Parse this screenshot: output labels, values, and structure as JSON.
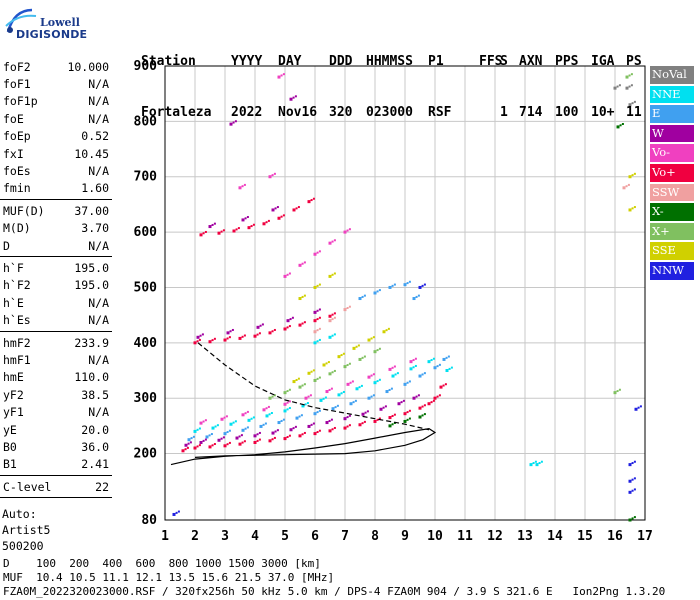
{
  "logo": {
    "line1": "Lowell",
    "line2": "DIGISONDE"
  },
  "header": {
    "row1": [
      "Station",
      "YYYY",
      "DAY",
      "DDD",
      "HHMMSS",
      "P1",
      "FFS",
      "S",
      "AXN",
      "PPS",
      "IGA",
      "PS"
    ],
    "row2": [
      "Fortaleza",
      "2022",
      "Nov16",
      "320",
      "023000",
      "RSF",
      "",
      "1",
      "714",
      "100",
      "10+",
      "11"
    ]
  },
  "params": {
    "group1": [
      {
        "label": "foF2",
        "value": "10.000"
      },
      {
        "label": "foF1",
        "value": "N/A"
      },
      {
        "label": "foF1p",
        "value": "N/A"
      },
      {
        "label": "foE",
        "value": "N/A"
      },
      {
        "label": "foEp",
        "value": "0.52"
      },
      {
        "label": "fxI",
        "value": "10.45"
      },
      {
        "label": "foEs",
        "value": "N/A"
      },
      {
        "label": "fmin",
        "value": "1.60"
      }
    ],
    "group2": [
      {
        "label": "MUF(D)",
        "value": "37.00"
      },
      {
        "label": "M(D)",
        "value": "3.70"
      },
      {
        "label": "D",
        "value": "N/A"
      }
    ],
    "group3": [
      {
        "label": "h`F",
        "value": "195.0"
      },
      {
        "label": "h`F2",
        "value": "195.0"
      },
      {
        "label": "h`E",
        "value": "N/A"
      },
      {
        "label": "h`Es",
        "value": "N/A"
      }
    ],
    "group4": [
      {
        "label": "hmF2",
        "value": "233.9"
      },
      {
        "label": "hmF1",
        "value": "N/A"
      },
      {
        "label": "hmE",
        "value": "110.0"
      },
      {
        "label": "yF2",
        "value": "38.5"
      },
      {
        "label": "yF1",
        "value": "N/A"
      },
      {
        "label": "yE",
        "value": "20.0"
      },
      {
        "label": "B0",
        "value": "36.0"
      },
      {
        "label": "B1",
        "value": "2.41"
      }
    ],
    "group5": [
      {
        "label": "C-level",
        "value": "22"
      }
    ],
    "auto_lines": [
      "Auto:",
      "Artist5",
      "500200"
    ]
  },
  "bottom": {
    "line1": "D    100  200  400  600  800 1000 1500 3000 [km]",
    "line2": "MUF  10.4 10.5 11.1 12.1 13.5 15.6 21.5 37.0 [MHz]",
    "line3": "FZA0M_2022320023000.RSF / 320fx256h 50 kHz 5.0 km / DPS-4 FZA0M 904 / 3.9 S 321.6 E   Ion2Png 1.3.20"
  },
  "legend": [
    {
      "label": "NoVal",
      "color": "#808080"
    },
    {
      "label": "NNE",
      "color": "#00e0f0"
    },
    {
      "label": "E",
      "color": "#40a0f0"
    },
    {
      "label": "W",
      "color": "#a000a0"
    },
    {
      "label": "Vo-",
      "color": "#f040c0"
    },
    {
      "label": "Vo+",
      "color": "#f00040"
    },
    {
      "label": "SSW",
      "color": "#f0a0a0"
    },
    {
      "label": "X-",
      "color": "#007000"
    },
    {
      "label": "X+",
      "color": "#80c060"
    },
    {
      "label": "SSE",
      "color": "#d0d000"
    },
    {
      "label": "NNW",
      "color": "#2020e0"
    }
  ],
  "chart_data": {
    "type": "scatter",
    "xlim": [
      1,
      17
    ],
    "ylim": [
      80,
      900
    ],
    "x_ticks": [
      1,
      2,
      3,
      4,
      5,
      6,
      7,
      8,
      9,
      10,
      11,
      12,
      13,
      14,
      15,
      16,
      17
    ],
    "y_ticks": [
      80,
      200,
      300,
      400,
      500,
      600,
      700,
      800,
      900
    ],
    "grid": true,
    "series": [
      {
        "color": "#f00040",
        "points": [
          [
            1.6,
            205
          ],
          [
            2,
            210
          ],
          [
            2.5,
            212
          ],
          [
            3,
            214
          ],
          [
            3.5,
            217
          ],
          [
            4,
            220
          ],
          [
            4.5,
            223
          ],
          [
            5,
            227
          ],
          [
            5.5,
            232
          ],
          [
            6,
            236
          ],
          [
            6.5,
            241
          ],
          [
            7,
            246
          ],
          [
            7.5,
            252
          ],
          [
            8,
            258
          ],
          [
            8.5,
            265
          ],
          [
            9,
            272
          ],
          [
            9.5,
            282
          ],
          [
            9.8,
            290
          ],
          [
            10,
            300
          ],
          [
            10.2,
            320
          ],
          [
            2,
            400
          ],
          [
            2.5,
            402
          ],
          [
            3,
            405
          ],
          [
            3.5,
            408
          ],
          [
            4,
            412
          ],
          [
            4.5,
            418
          ],
          [
            5,
            425
          ],
          [
            5.5,
            432
          ],
          [
            6,
            440
          ],
          [
            6.5,
            448
          ],
          [
            2.2,
            595
          ],
          [
            2.8,
            598
          ],
          [
            3.3,
            602
          ],
          [
            3.8,
            608
          ],
          [
            4.3,
            615
          ],
          [
            4.8,
            625
          ],
          [
            5.3,
            640
          ],
          [
            5.8,
            655
          ]
        ]
      },
      {
        "color": "#a000a0",
        "points": [
          [
            1.7,
            215
          ],
          [
            2.2,
            220
          ],
          [
            2.8,
            224
          ],
          [
            3.4,
            228
          ],
          [
            4,
            232
          ],
          [
            4.6,
            237
          ],
          [
            5.2,
            243
          ],
          [
            5.8,
            249
          ],
          [
            6.4,
            256
          ],
          [
            7,
            263
          ],
          [
            7.6,
            271
          ],
          [
            8.2,
            280
          ],
          [
            8.8,
            290
          ],
          [
            9.3,
            300
          ],
          [
            2.1,
            410
          ],
          [
            3.1,
            418
          ],
          [
            4.1,
            428
          ],
          [
            5.1,
            440
          ],
          [
            6,
            455
          ],
          [
            2.5,
            610
          ],
          [
            3.6,
            622
          ],
          [
            4.6,
            640
          ],
          [
            3.2,
            795
          ],
          [
            5.2,
            840
          ]
        ]
      },
      {
        "color": "#40a0f0",
        "points": [
          [
            1.8,
            225
          ],
          [
            2.4,
            230
          ],
          [
            3,
            236
          ],
          [
            3.6,
            242
          ],
          [
            4.2,
            249
          ],
          [
            4.8,
            256
          ],
          [
            5.4,
            264
          ],
          [
            6,
            272
          ],
          [
            6.6,
            281
          ],
          [
            7.2,
            290
          ],
          [
            7.8,
            300
          ],
          [
            8.4,
            312
          ],
          [
            9,
            325
          ],
          [
            9.5,
            340
          ],
          [
            10,
            355
          ],
          [
            10.3,
            370
          ],
          [
            7.5,
            480
          ],
          [
            8,
            490
          ],
          [
            8.5,
            500
          ],
          [
            9,
            505
          ],
          [
            9.3,
            480
          ]
        ]
      },
      {
        "color": "#00e0f0",
        "points": [
          [
            2,
            240
          ],
          [
            2.6,
            246
          ],
          [
            3.2,
            253
          ],
          [
            3.8,
            260
          ],
          [
            4.4,
            268
          ],
          [
            5,
            277
          ],
          [
            5.6,
            286
          ],
          [
            6.2,
            296
          ],
          [
            6.8,
            306
          ],
          [
            7.4,
            317
          ],
          [
            8,
            328
          ],
          [
            8.6,
            340
          ],
          [
            9.2,
            353
          ],
          [
            9.8,
            366
          ],
          [
            10.4,
            350
          ],
          [
            6,
            400
          ],
          [
            6.5,
            410
          ]
        ]
      },
      {
        "color": "#f040c0",
        "points": [
          [
            2.2,
            255
          ],
          [
            2.9,
            262
          ],
          [
            3.6,
            270
          ],
          [
            4.3,
            279
          ],
          [
            5,
            289
          ],
          [
            5.7,
            300
          ],
          [
            6.4,
            312
          ],
          [
            7.1,
            325
          ],
          [
            7.8,
            338
          ],
          [
            8.5,
            352
          ],
          [
            9.2,
            366
          ],
          [
            5,
            520
          ],
          [
            5.5,
            540
          ],
          [
            6,
            560
          ],
          [
            6.5,
            580
          ],
          [
            7,
            600
          ],
          [
            3.5,
            680
          ],
          [
            4.5,
            700
          ],
          [
            4.8,
            880
          ]
        ]
      },
      {
        "color": "#d0d000",
        "points": [
          [
            5.3,
            330
          ],
          [
            5.8,
            345
          ],
          [
            6.3,
            360
          ],
          [
            6.8,
            375
          ],
          [
            7.3,
            390
          ],
          [
            7.8,
            405
          ],
          [
            8.3,
            420
          ],
          [
            5.5,
            480
          ],
          [
            6,
            500
          ],
          [
            6.5,
            520
          ],
          [
            16.5,
            640
          ],
          [
            16.5,
            700
          ]
        ]
      },
      {
        "color": "#80c060",
        "points": [
          [
            4.5,
            300
          ],
          [
            5,
            310
          ],
          [
            5.5,
            320
          ],
          [
            6,
            332
          ],
          [
            6.5,
            344
          ],
          [
            7,
            357
          ],
          [
            7.5,
            370
          ],
          [
            8,
            384
          ],
          [
            16,
            310
          ],
          [
            16.4,
            880
          ]
        ]
      },
      {
        "color": "#007000",
        "points": [
          [
            8.5,
            250
          ],
          [
            9,
            258
          ],
          [
            9.5,
            266
          ],
          [
            16.5,
            80
          ],
          [
            16.1,
            790
          ]
        ]
      },
      {
        "color": "#2020e0",
        "points": [
          [
            1.3,
            90
          ],
          [
            9.5,
            500
          ],
          [
            16.5,
            130
          ],
          [
            16.5,
            150
          ],
          [
            16.5,
            180
          ],
          [
            16.7,
            280
          ]
        ]
      },
      {
        "color": "#808080",
        "points": [
          [
            16,
            860
          ],
          [
            16.4,
            860
          ],
          [
            16.5,
            830
          ]
        ]
      },
      {
        "color": "#f0a0a0",
        "points": [
          [
            6,
            420
          ],
          [
            6.5,
            440
          ],
          [
            7,
            460
          ],
          [
            16.3,
            680
          ]
        ]
      },
      {
        "color": "#00e0f0",
        "points": [
          [
            13.2,
            180
          ],
          [
            13.4,
            180
          ]
        ]
      }
    ],
    "lines": [
      {
        "style": "solid",
        "points": [
          [
            1.2,
            180
          ],
          [
            2,
            190
          ],
          [
            3,
            195
          ],
          [
            4,
            198
          ],
          [
            5,
            203
          ],
          [
            6,
            210
          ],
          [
            7,
            218
          ],
          [
            8,
            228
          ],
          [
            9,
            238
          ],
          [
            9.8,
            245
          ],
          [
            10,
            238
          ],
          [
            9.6,
            225
          ],
          [
            9,
            215
          ],
          [
            8,
            205
          ],
          [
            7,
            200
          ],
          [
            5,
            198
          ],
          [
            3,
            196
          ],
          [
            2,
            193
          ]
        ]
      },
      {
        "style": "dashed",
        "points": [
          [
            2.1,
            400
          ],
          [
            3,
            360
          ],
          [
            4,
            322
          ],
          [
            5,
            297
          ],
          [
            6,
            283
          ],
          [
            7,
            273
          ],
          [
            8,
            263
          ],
          [
            9,
            253
          ],
          [
            9.8,
            243
          ]
        ]
      }
    ]
  }
}
